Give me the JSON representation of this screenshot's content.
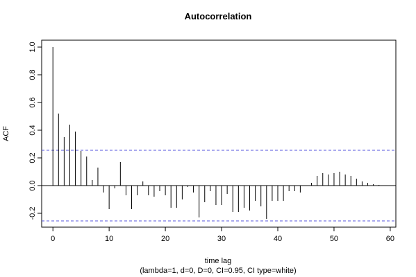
{
  "chart_data": {
    "type": "bar",
    "title": "Autocorrelation",
    "xlabel": "time lag",
    "subtitle": "(lambda=1, d=0, D=0, CI=0.95, CI type=white)",
    "ylabel": "ACF",
    "xlim": [
      -2,
      61
    ],
    "ylim": [
      -0.3,
      1.05
    ],
    "x_ticks": [
      "0",
      "10",
      "20",
      "30",
      "40",
      "50",
      "60"
    ],
    "y_ticks": [
      "-0.2",
      "0.0",
      "0.2",
      "0.4",
      "0.6",
      "0.8",
      "1.0"
    ],
    "confidence_band": [
      0.255,
      -0.255
    ],
    "confidence_color": "#5555dd",
    "lags": [
      0,
      1,
      2,
      3,
      4,
      5,
      6,
      7,
      8,
      9,
      10,
      11,
      12,
      13,
      14,
      15,
      16,
      17,
      18,
      19,
      20,
      21,
      22,
      23,
      24,
      25,
      26,
      27,
      28,
      29,
      30,
      31,
      32,
      33,
      34,
      35,
      36,
      37,
      38,
      39,
      40,
      41,
      42,
      43,
      44,
      45,
      46,
      47,
      48,
      49,
      50,
      51,
      52,
      53,
      54,
      55,
      56,
      57,
      58
    ],
    "values": [
      1.0,
      0.52,
      0.35,
      0.44,
      0.39,
      0.25,
      0.21,
      0.04,
      0.13,
      -0.05,
      -0.17,
      -0.02,
      0.17,
      -0.07,
      -0.17,
      -0.07,
      0.03,
      -0.07,
      -0.08,
      -0.04,
      -0.07,
      -0.16,
      -0.16,
      -0.1,
      -0.01,
      -0.05,
      -0.23,
      -0.12,
      -0.04,
      -0.14,
      -0.14,
      -0.06,
      -0.19,
      -0.19,
      -0.16,
      -0.18,
      -0.11,
      -0.15,
      -0.24,
      -0.11,
      -0.11,
      -0.11,
      -0.04,
      -0.04,
      -0.05,
      0.0,
      0.02,
      0.07,
      0.09,
      0.08,
      0.09,
      0.1,
      0.08,
      0.07,
      0.05,
      0.03,
      0.02,
      0.01,
      0.005
    ]
  }
}
